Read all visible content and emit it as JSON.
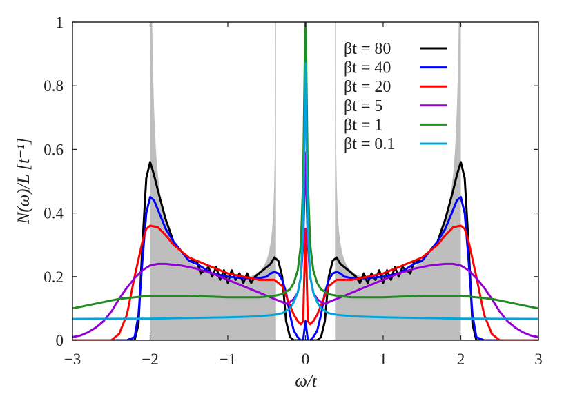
{
  "chart_data": {
    "type": "line",
    "title": "",
    "xlabel": "ω/t",
    "ylabel": "N(ω)/L [t⁻¹]",
    "xlim": [
      -3,
      3
    ],
    "ylim": [
      0,
      1
    ],
    "xticks": [
      -3,
      -2,
      -1,
      0,
      1,
      2,
      3
    ],
    "xtick_labels": [
      "−3",
      "−2",
      "−1",
      "0",
      "1",
      "2",
      "3"
    ],
    "yticks": [
      0,
      0.2,
      0.4,
      0.6,
      0.8,
      1
    ],
    "ytick_labels": [
      "0",
      "0.2",
      "0.4",
      "0.6",
      "0.8",
      "1"
    ],
    "grid": false,
    "legend_position": "top-right",
    "shaded_region": {
      "color": "#bebebe",
      "bands": [
        [
          -2,
          -0.38
        ],
        [
          0.38,
          2
        ]
      ]
    },
    "symmetric_about_zero": true,
    "series": [
      {
        "name": "βt = 80",
        "color": "#000000",
        "x": [
          0,
          0.03,
          0.06,
          0.1,
          0.15,
          0.2,
          0.25,
          0.3,
          0.35,
          0.4,
          0.45,
          0.5,
          0.6,
          0.65,
          0.7,
          0.75,
          0.8,
          0.85,
          0.9,
          0.95,
          1.0,
          1.05,
          1.1,
          1.15,
          1.2,
          1.25,
          1.3,
          1.35,
          1.4,
          1.5,
          1.6,
          1.7,
          1.8,
          1.9,
          1.95,
          2.0,
          2.05,
          2.1,
          2.15,
          2.2,
          2.3,
          3.0
        ],
        "y": [
          0,
          0,
          0,
          0,
          0,
          0.01,
          0.06,
          0.2,
          0.25,
          0.26,
          0.24,
          0.23,
          0.21,
          0.2,
          0.18,
          0.21,
          0.18,
          0.21,
          0.19,
          0.22,
          0.18,
          0.22,
          0.19,
          0.23,
          0.2,
          0.23,
          0.22,
          0.21,
          0.25,
          0.25,
          0.28,
          0.31,
          0.38,
          0.47,
          0.52,
          0.56,
          0.51,
          0.3,
          0.05,
          0,
          0,
          0
        ]
      },
      {
        "name": "βt = 40",
        "color": "#0000ff",
        "x": [
          0,
          0.03,
          0.06,
          0.1,
          0.15,
          0.2,
          0.25,
          0.3,
          0.35,
          0.4,
          0.45,
          0.5,
          0.6,
          0.8,
          1.0,
          1.2,
          1.4,
          1.5,
          1.6,
          1.7,
          1.8,
          1.9,
          1.95,
          2.0,
          2.05,
          2.1,
          2.15,
          2.2,
          2.3,
          3.0
        ],
        "y": [
          0.06,
          0,
          0,
          0.01,
          0.03,
          0.08,
          0.15,
          0.19,
          0.21,
          0.215,
          0.21,
          0.2,
          0.195,
          0.195,
          0.2,
          0.21,
          0.24,
          0.25,
          0.28,
          0.31,
          0.35,
          0.41,
          0.44,
          0.45,
          0.4,
          0.25,
          0.08,
          0.01,
          0,
          0
        ]
      },
      {
        "name": "βt = 20",
        "color": "#ff0000",
        "x": [
          0,
          0.03,
          0.06,
          0.1,
          0.15,
          0.2,
          0.25,
          0.3,
          0.35,
          0.4,
          0.5,
          0.6,
          0.8,
          1.0,
          1.2,
          1.4,
          1.5,
          1.6,
          1.7,
          1.8,
          1.9,
          2.0,
          2.05,
          2.1,
          2.2,
          2.3,
          2.4,
          2.5,
          3.0
        ],
        "y": [
          0.35,
          0.06,
          0.05,
          0.06,
          0.08,
          0.11,
          0.14,
          0.17,
          0.18,
          0.19,
          0.19,
          0.19,
          0.2,
          0.21,
          0.23,
          0.25,
          0.26,
          0.28,
          0.3,
          0.33,
          0.355,
          0.36,
          0.35,
          0.31,
          0.2,
          0.08,
          0.02,
          0,
          0
        ]
      },
      {
        "name": "βt = 5",
        "color": "#9400d3",
        "x": [
          0,
          0.03,
          0.06,
          0.1,
          0.15,
          0.2,
          0.25,
          0.3,
          0.4,
          0.5,
          0.6,
          0.8,
          1.0,
          1.2,
          1.4,
          1.6,
          1.8,
          1.9,
          2.0,
          2.1,
          2.2,
          2.3,
          2.4,
          2.5,
          2.6,
          2.7,
          2.8,
          2.9,
          3.0
        ],
        "y": [
          0.59,
          0.3,
          0.2,
          0.15,
          0.13,
          0.12,
          0.115,
          0.12,
          0.13,
          0.14,
          0.15,
          0.17,
          0.19,
          0.21,
          0.225,
          0.235,
          0.24,
          0.24,
          0.235,
          0.22,
          0.195,
          0.165,
          0.13,
          0.09,
          0.06,
          0.04,
          0.025,
          0.015,
          0.01
        ]
      },
      {
        "name": "βt = 1",
        "color": "#228b22",
        "x": [
          0,
          0.03,
          0.06,
          0.1,
          0.15,
          0.2,
          0.3,
          0.4,
          0.6,
          1.0,
          1.5,
          2.0,
          2.2,
          2.4,
          2.6,
          2.8,
          3.0
        ],
        "y": [
          1.05,
          0.5,
          0.3,
          0.22,
          0.18,
          0.16,
          0.145,
          0.14,
          0.135,
          0.135,
          0.14,
          0.14,
          0.135,
          0.13,
          0.12,
          0.11,
          0.1
        ]
      },
      {
        "name": "βt = 0.1",
        "color": "#00a5dc",
        "x": [
          0,
          0.03,
          0.06,
          0.1,
          0.15,
          0.2,
          0.3,
          0.4,
          0.6,
          1.0,
          1.5,
          2.0,
          3.0
        ],
        "y": [
          0.87,
          0.35,
          0.2,
          0.15,
          0.12,
          0.1,
          0.085,
          0.08,
          0.075,
          0.072,
          0.07,
          0.068,
          0.067
        ]
      }
    ]
  }
}
